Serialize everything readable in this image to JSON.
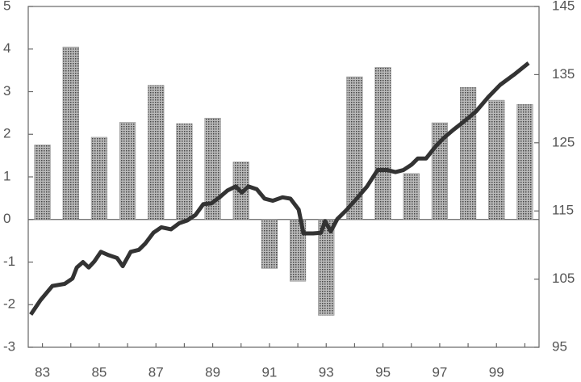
{
  "chart_data": {
    "type": "bar-line",
    "categories": [
      "83",
      null,
      "85",
      null,
      "87",
      null,
      "89",
      null,
      "91",
      null,
      "93",
      null,
      "95",
      null,
      "97",
      null,
      "99",
      null
    ],
    "values": [
      1.75,
      4.05,
      1.93,
      2.28,
      3.15,
      2.25,
      2.38,
      1.35,
      -1.15,
      -1.45,
      -2.25,
      3.35,
      3.57,
      1.08,
      2.27,
      3.1,
      2.8,
      2.7
    ],
    "color": "#8a8a8a",
    "ylim": [
      -3,
      5
    ],
    "yticks": [
      -3,
      -2,
      -1,
      0,
      1,
      2,
      3,
      4,
      5
    ],
    "y2lim": [
      95,
      145
    ],
    "y2ticks": [
      95,
      105,
      115,
      125,
      135,
      145
    ],
    "xlim": [
      1982.5,
      2000.5
    ],
    "series": [
      {
        "axis": "y2",
        "color": "#333333",
        "x": [
          1982.59,
          1982.93,
          1983.35,
          1983.78,
          1984.06,
          1984.21,
          1984.43,
          1984.63,
          1984.83,
          1985.06,
          1985.34,
          1985.63,
          1985.83,
          1986.11,
          1986.4,
          1986.62,
          1986.91,
          1987.19,
          1987.53,
          1987.82,
          1988.1,
          1988.39,
          1988.67,
          1988.95,
          1989.24,
          1989.52,
          1989.81,
          1990.03,
          1990.26,
          1990.55,
          1990.83,
          1991.12,
          1991.46,
          1991.74,
          1992.03,
          1992.2,
          1992.54,
          1992.82,
          1992.96,
          1993.16,
          1993.39,
          1993.73,
          1994.07,
          1994.44,
          1994.81,
          1995.15,
          1995.44,
          1995.72,
          1996.01,
          1996.23,
          1996.52,
          1996.86,
          1997.14,
          1997.48,
          1997.85,
          1998.28,
          1998.71,
          1999.13,
          1999.62,
          2000.13
        ],
        "values": [
          99.8,
          101.9,
          104.0,
          104.3,
          105.1,
          106.7,
          107.5,
          106.7,
          107.6,
          109.0,
          108.5,
          108.1,
          106.9,
          109.0,
          109.3,
          110.2,
          111.8,
          112.6,
          112.3,
          113.2,
          113.6,
          114.4,
          116.0,
          116.1,
          117.0,
          118.0,
          118.6,
          117.7,
          118.6,
          118.2,
          116.8,
          116.5,
          117.0,
          116.8,
          115.2,
          111.7,
          111.7,
          111.8,
          113.5,
          112.0,
          113.8,
          115.2,
          116.8,
          118.6,
          121.0,
          121.0,
          120.7,
          121.0,
          121.8,
          122.7,
          122.7,
          124.5,
          125.7,
          126.9,
          128.1,
          129.6,
          131.7,
          133.5,
          135.0,
          136.7
        ]
      }
    ]
  }
}
